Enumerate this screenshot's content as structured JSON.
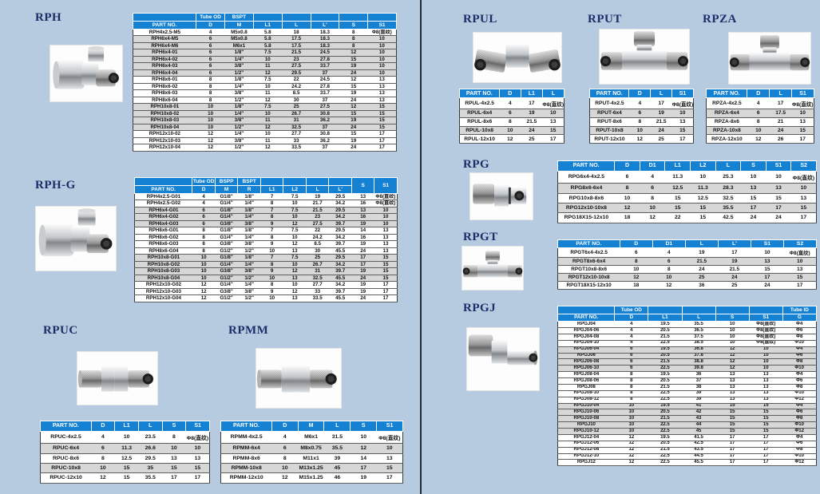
{
  "palette": {
    "page_bg": "#b6cbdf",
    "header_blue": "#1581d3",
    "row_alt": "#d7d7d7",
    "title_color": "#1b2e6a",
    "divider": "#1f2937"
  },
  "sections": {
    "rph": {
      "title": "RPH",
      "table": {
        "header_top": [
          "",
          "Tube OD",
          "BSPT",
          "",
          "",
          "",
          "",
          ""
        ],
        "header": [
          "PART NO.",
          "D",
          "M",
          "L1",
          "L",
          "L'",
          "S",
          "S1"
        ],
        "rows": [
          [
            "RPH4x2.5-M5",
            "4",
            "M5x0.8",
            "5.8",
            "18",
            "18.3",
            "8",
            "Φ8(直纹)"
          ],
          [
            "RPH6x4-M5",
            "6",
            "M5x0.8",
            "5.8",
            "17.5",
            "18.3",
            "8",
            "10"
          ],
          [
            "RPH6x4-M6",
            "6",
            "M6x1",
            "5.8",
            "17.5",
            "18.3",
            "8",
            "10"
          ],
          [
            "RPH6x4-01",
            "6",
            "1/8\"",
            "7.5",
            "21.5",
            "24.5",
            "12",
            "10"
          ],
          [
            "RPH6x4-02",
            "6",
            "1/4\"",
            "10",
            "23",
            "27.8",
            "15",
            "10"
          ],
          [
            "RPH6x4-03",
            "6",
            "3/8\"",
            "11",
            "27.5",
            "33.7",
            "19",
            "10"
          ],
          [
            "RPH6x4-04",
            "6",
            "1/2\"",
            "12",
            "29.5",
            "37",
            "24",
            "10"
          ],
          [
            "RPH8x6-01",
            "8",
            "1/8\"",
            "7.5",
            "22",
            "24.5",
            "12",
            "13"
          ],
          [
            "RPH8x6-02",
            "8",
            "1/4\"",
            "10",
            "24.2",
            "27.8",
            "15",
            "13"
          ],
          [
            "RPH8x6-03",
            "8",
            "3/8\"",
            "11",
            "8.5",
            "33.7",
            "19",
            "13"
          ],
          [
            "RPH8x6-04",
            "8",
            "1/2\"",
            "12",
            "30",
            "37",
            "24",
            "13"
          ],
          [
            "RPH10x8-01",
            "10",
            "1/8\"",
            "7.5",
            "25",
            "27.5",
            "12",
            "15"
          ],
          [
            "RPH10x8-02",
            "10",
            "1/4\"",
            "10",
            "26.7",
            "30.8",
            "15",
            "15"
          ],
          [
            "RPH10x8-03",
            "10",
            "3/8\"",
            "11",
            "31",
            "36.2",
            "19",
            "15"
          ],
          [
            "RPH10x8-04",
            "10",
            "1/2\"",
            "12",
            "32.5",
            "37",
            "24",
            "15"
          ],
          [
            "RPH12x10-02",
            "12",
            "1/4\"",
            "10",
            "27.7",
            "30.8",
            "15",
            "17"
          ],
          [
            "RPH12x10-03",
            "12",
            "3/8\"",
            "11",
            "33",
            "36.2",
            "19",
            "17"
          ],
          [
            "RPH12x10-04",
            "12",
            "1/2\"",
            "12",
            "33.5",
            "37",
            "24",
            "17"
          ]
        ]
      }
    },
    "rphg": {
      "title": "RPH-G",
      "table": {
        "header_top": [
          "",
          "Tube OD",
          "BSPP",
          "BSPT",
          "",
          "",
          "",
          "",
          {
            "t": "S",
            "rs": 2
          },
          {
            "t": "S1",
            "rs": 2
          }
        ],
        "header": [
          "PART NO.",
          "D",
          "M",
          "R",
          "L1",
          "L2",
          "L",
          "L'"
        ],
        "rows": [
          [
            "RPH4x2.5-G01",
            "4",
            "G1/8\"",
            "1/8\"",
            "7",
            "7.5",
            "19",
            "29.5",
            "13",
            "Φ8(直纹)"
          ],
          [
            "RPH4x2.5-G02",
            "4",
            "G1/4\"",
            "1/4\"",
            "8",
            "10",
            "21.7",
            "34.2",
            "16",
            "Φ8(直纹)"
          ],
          [
            "RPH6x4-G01",
            "6",
            "G1/8\"",
            "1/8\"",
            "7",
            "7.5",
            "21.5",
            "29.5",
            "13",
            "10"
          ],
          [
            "RPH6x4-G02",
            "6",
            "G1/4\"",
            "1/4\"",
            "8",
            "10",
            "23",
            "34.2",
            "16",
            "10"
          ],
          [
            "RPH6x4-G03",
            "6",
            "G3/8\"",
            "3/8\"",
            "9",
            "12",
            "27.5",
            "39.7",
            "19",
            "10"
          ],
          [
            "RPH8x6-G01",
            "8",
            "G1/8\"",
            "1/8\"",
            "7",
            "7.5",
            "22",
            "29.5",
            "14",
            "13"
          ],
          [
            "RPH8x6-G02",
            "8",
            "G1/4\"",
            "1/4\"",
            "8",
            "10",
            "24.2",
            "34.2",
            "16",
            "13"
          ],
          [
            "RPH8x6-G03",
            "8",
            "G3/8\"",
            "3/8\"",
            "9",
            "12",
            "8.5",
            "39.7",
            "19",
            "13"
          ],
          [
            "RPH8x6-G04",
            "8",
            "G1/2\"",
            "1/2\"",
            "10",
            "13",
            "30",
            "45.5",
            "24",
            "13"
          ],
          [
            "RPH10x8-G01",
            "10",
            "G1/8\"",
            "1/8\"",
            "7",
            "7.5",
            "25",
            "29.5",
            "17",
            "15"
          ],
          [
            "RPH10x8-G02",
            "10",
            "G1/4\"",
            "1/4\"",
            "8",
            "10",
            "26.7",
            "34.2",
            "17",
            "15"
          ],
          [
            "RPH10x8-G03",
            "10",
            "G3/8\"",
            "3/8\"",
            "9",
            "12",
            "31",
            "39.7",
            "19",
            "15"
          ],
          [
            "RPH10x8-G04",
            "10",
            "G1/2\"",
            "1/2\"",
            "10",
            "13",
            "32.5",
            "45.5",
            "24",
            "15"
          ],
          [
            "RPH12x10-G02",
            "12",
            "G1/4\"",
            "1/4\"",
            "8",
            "10",
            "27.7",
            "34.2",
            "19",
            "17"
          ],
          [
            "RPH12x10-G03",
            "12",
            "G3/8\"",
            "3/8\"",
            "9",
            "12",
            "33",
            "39.7",
            "19",
            "17"
          ],
          [
            "RPH12x10-G04",
            "12",
            "G1/2\"",
            "1/2\"",
            "10",
            "13",
            "33.5",
            "45.5",
            "24",
            "17"
          ]
        ]
      }
    },
    "rpuc": {
      "title": "RPUC",
      "table": {
        "header": [
          "PART NO.",
          "D",
          "L1",
          "L",
          "S",
          "S1"
        ],
        "rows": [
          [
            "RPUC-4x2.5",
            "4",
            "10",
            "23.5",
            "8",
            "Φ8(直纹)"
          ],
          [
            "RPUC-6x4",
            "6",
            "11.3",
            "26.6",
            "10",
            "10"
          ],
          [
            "RPUC-8x6",
            "8",
            "12.5",
            "29.5",
            "13",
            "13"
          ],
          [
            "RPUC-10x8",
            "10",
            "15",
            "35",
            "15",
            "15"
          ],
          [
            "RPUC-12x10",
            "12",
            "15",
            "35.5",
            "17",
            "17"
          ]
        ]
      }
    },
    "rpmm": {
      "title": "RPMM",
      "table": {
        "header": [
          "PART NO.",
          "D",
          "M",
          "L",
          "S",
          "S1"
        ],
        "rows": [
          [
            "RPMM-4x2.5",
            "4",
            "M6x1",
            "31.5",
            "10",
            "Φ8(直纹)"
          ],
          [
            "RPMM-6x4",
            "6",
            "M8x0.75",
            "35.5",
            "12",
            "10"
          ],
          [
            "RPMM-8x6",
            "8",
            "M11x1",
            "39",
            "14",
            "13"
          ],
          [
            "RPMM-10x8",
            "10",
            "M13x1.25",
            "45",
            "17",
            "15"
          ],
          [
            "RPMM-12x10",
            "12",
            "M15x1.25",
            "46",
            "19",
            "17"
          ]
        ]
      }
    },
    "rpul": {
      "title": "RPUL",
      "table": {
        "header": [
          "PART NO.",
          "D",
          "L1",
          "L"
        ],
        "rows": [
          [
            "RPUL-4x2.5",
            "4",
            "17",
            "Φ8(直纹)"
          ],
          [
            "RPUL-6x4",
            "6",
            "19",
            "10"
          ],
          [
            "RPUL-8x6",
            "8",
            "21.5",
            "13"
          ],
          [
            "RPUL-10x8",
            "10",
            "24",
            "15"
          ],
          [
            "RPUL-12x10",
            "12",
            "25",
            "17"
          ]
        ]
      }
    },
    "rput": {
      "title": "RPUT",
      "table": {
        "header": [
          "PART NO.",
          "D",
          "L",
          "S1"
        ],
        "rows": [
          [
            "RPUT-4x2.5",
            "4",
            "17",
            "Φ8(直纹)"
          ],
          [
            "RPUT-6x4",
            "6",
            "19",
            "10"
          ],
          [
            "RPUT-8x6",
            "8",
            "21.5",
            "13"
          ],
          [
            "RPUT-10x8",
            "10",
            "24",
            "15"
          ],
          [
            "RPUT-12x10",
            "12",
            "25",
            "17"
          ]
        ]
      }
    },
    "rpza": {
      "title": "RPZA",
      "table": {
        "header": [
          "PART NO.",
          "D",
          "L",
          "S1"
        ],
        "rows": [
          [
            "RPZA-4x2.5",
            "4",
            "17",
            "Φ8(直纹)"
          ],
          [
            "RPZA-6x4",
            "6",
            "17.5",
            "10"
          ],
          [
            "RPZA-8x6",
            "8",
            "21",
            "13"
          ],
          [
            "RPZA-10x8",
            "10",
            "24",
            "15"
          ],
          [
            "RPZA-12x10",
            "12",
            "26",
            "17"
          ]
        ]
      }
    },
    "rpg": {
      "title": "RPG",
      "table": {
        "header": [
          "PART NO.",
          "D",
          "D1",
          "L1",
          "L2",
          "L",
          "S",
          "S1",
          "S2"
        ],
        "rows": [
          [
            "RPG6x4-4x2.5",
            "6",
            "4",
            "11.3",
            "10",
            "25.3",
            "10",
            "10",
            "Φ8(直纹)"
          ],
          [
            "RPG8x6-6x4",
            "8",
            "6",
            "12.5",
            "11.3",
            "28.3",
            "13",
            "13",
            "10"
          ],
          [
            "RPG10x8-8x6",
            "10",
            "8",
            "15",
            "12.5",
            "32.5",
            "15",
            "15",
            "13"
          ],
          [
            "RPG12x10-10x8",
            "12",
            "10",
            "15",
            "15",
            "35.5",
            "17",
            "17",
            "15"
          ],
          [
            "RPG18X15-12x10",
            "18",
            "12",
            "22",
            "15",
            "42.5",
            "24",
            "24",
            "17"
          ]
        ]
      }
    },
    "rpgt": {
      "title": "RPGT",
      "table": {
        "header": [
          "PART NO.",
          "D",
          "D1",
          "L",
          "L'",
          "S1",
          "S2"
        ],
        "rows": [
          [
            "RPGT6x4-4x2.5",
            "6",
            "4",
            "19",
            "17",
            "10",
            "Φ8(直纹)"
          ],
          [
            "RPGT8x6-6x4",
            "8",
            "6",
            "21.5",
            "19",
            "13",
            "10"
          ],
          [
            "RPGT10x8-8x6",
            "10",
            "8",
            "24",
            "21.5",
            "15",
            "13"
          ],
          [
            "RPGT12x10-10x8",
            "12",
            "10",
            "25",
            "24",
            "17",
            "15"
          ],
          [
            "RPGT18X15-12x10",
            "18",
            "12",
            "36",
            "25",
            "24",
            "17"
          ]
        ]
      }
    },
    "rpgj": {
      "title": "RPGJ",
      "table": {
        "header_top": [
          "",
          "Tube OD",
          "",
          "",
          "",
          "",
          "Tube ID"
        ],
        "header": [
          "PART NO.",
          "D",
          "L1",
          "L",
          "S",
          "S1",
          "G"
        ],
        "rows": [
          [
            "RPGJ04",
            "4",
            "19.5",
            "35.5",
            "10",
            "Φ8(直纹)",
            "Φ4"
          ],
          [
            "RPGJ04-06",
            "4",
            "20.5",
            "36.5",
            "10",
            "Φ8(直纹)",
            "Φ6"
          ],
          [
            "RPGJ04-08",
            "4",
            "21.5",
            "37.5",
            "10",
            "Φ8(直纹)",
            "Φ8"
          ],
          [
            "RPGJ04-10",
            "4",
            "22.5",
            "38.5",
            "10",
            "Φ8(直纹)",
            "Φ10"
          ],
          [
            "RPGJ06-04",
            "6",
            "19.5",
            "36.8",
            "12",
            "10",
            "Φ4"
          ],
          [
            "RPGJ06",
            "6",
            "20.5",
            "37.8",
            "12",
            "10",
            "Φ6"
          ],
          [
            "RPGJ06-08",
            "6",
            "21.5",
            "38.8",
            "12",
            "10",
            "Φ8"
          ],
          [
            "RPGJ06-10",
            "6",
            "22.5",
            "39.8",
            "12",
            "10",
            "Φ10"
          ],
          [
            "RPGJ08-04",
            "8",
            "19.5",
            "36",
            "13",
            "13",
            "Φ4"
          ],
          [
            "RPGJ08-06",
            "8",
            "20.5",
            "37",
            "13",
            "13",
            "Φ6"
          ],
          [
            "RPGJ08",
            "8",
            "21.5",
            "38",
            "13",
            "13",
            "Φ8"
          ],
          [
            "RPGJ08-10",
            "8",
            "22.5",
            "39",
            "13",
            "13",
            "Φ10"
          ],
          [
            "RPGJ08-12",
            "8",
            "22.5",
            "39",
            "13",
            "13",
            "Φ12"
          ],
          [
            "RPGJ10-04",
            "10",
            "19.5",
            "41",
            "15",
            "15",
            "Φ4"
          ],
          [
            "RPGJ10-06",
            "10",
            "20.5",
            "42",
            "15",
            "15",
            "Φ6"
          ],
          [
            "RPGJ10-08",
            "10",
            "21.5",
            "43",
            "15",
            "15",
            "Φ8"
          ],
          [
            "RPGJ10",
            "10",
            "22.5",
            "44",
            "15",
            "15",
            "Φ10"
          ],
          [
            "RPGJ10-12",
            "10",
            "22.5",
            "45",
            "15",
            "15",
            "Φ12"
          ],
          [
            "RPGJ12-04",
            "12",
            "19.5",
            "41.5",
            "17",
            "17",
            "Φ4"
          ],
          [
            "RPGJ12-06",
            "12",
            "20.5",
            "42.5",
            "17",
            "17",
            "Φ6"
          ],
          [
            "RPGJ12-08",
            "12",
            "21.5",
            "43.5",
            "17",
            "17",
            "Φ8"
          ],
          [
            "RPGJ12-10",
            "12",
            "22.5",
            "44.5",
            "17",
            "17",
            "Φ10"
          ],
          [
            "RPGJ12",
            "12",
            "22.5",
            "45.5",
            "17",
            "17",
            "Φ12"
          ]
        ]
      }
    }
  }
}
